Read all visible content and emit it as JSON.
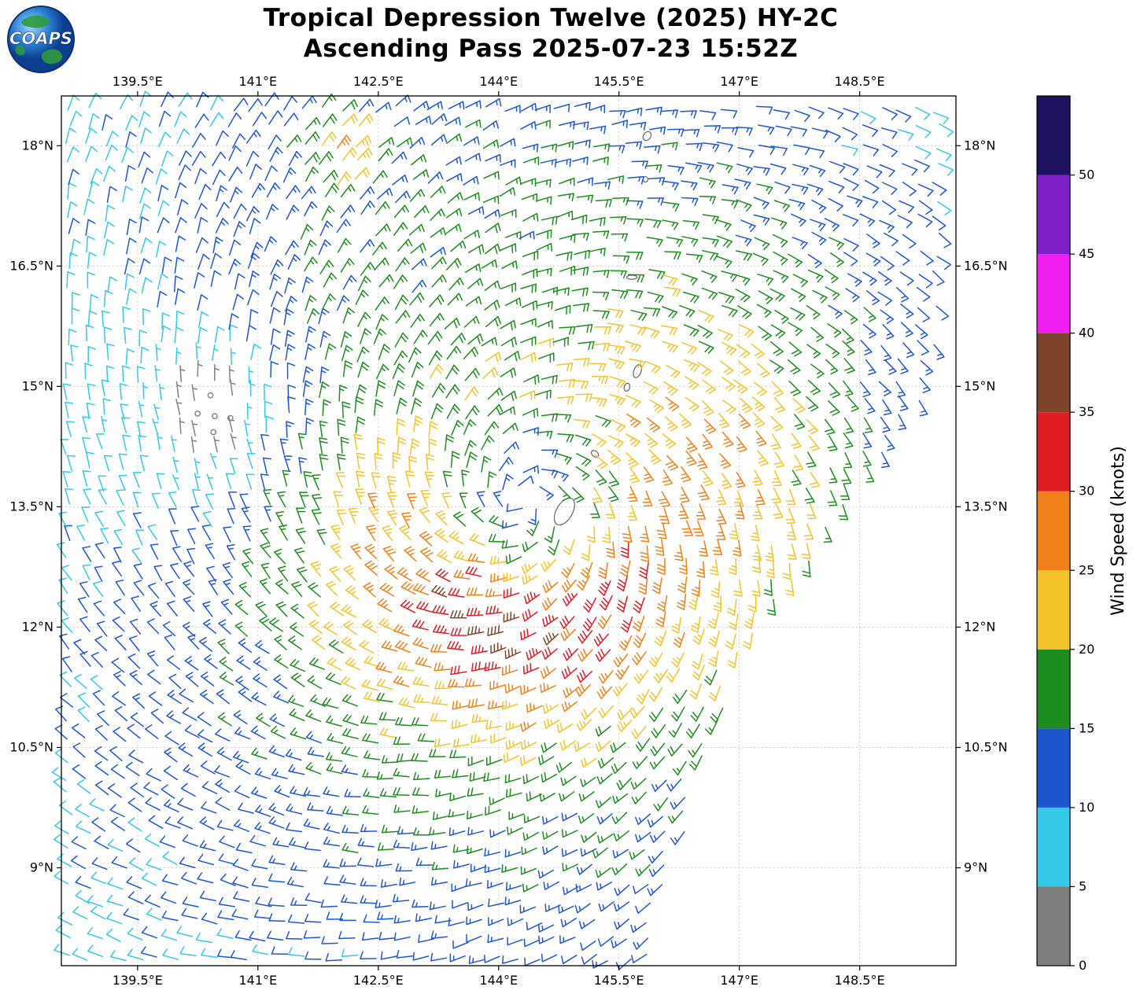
{
  "header": {
    "logo_text": "COAPS",
    "title_line1": "Tropical Depression Twelve (2025) HY-2C",
    "title_line2": "Ascending Pass 2025-07-23 15:52Z"
  },
  "chart_data": {
    "type": "wind_barb_map",
    "title": "Tropical Depression Twelve (2025) HY-2C",
    "subtitle": "Ascending Pass 2025-07-23 15:52Z",
    "x_axis": {
      "range": [
        138.55,
        149.7
      ],
      "ticks": [
        139.5,
        141,
        142.5,
        144,
        145.5,
        147,
        148.5
      ],
      "tick_labels": [
        "139.5°E",
        "141°E",
        "142.5°E",
        "144°E",
        "145.5°E",
        "147°E",
        "148.5°E"
      ]
    },
    "y_axis": {
      "range": [
        7.78,
        18.62
      ],
      "ticks": [
        9,
        10.5,
        12,
        13.5,
        15,
        16.5,
        18
      ],
      "tick_labels": [
        "9°N",
        "10.5°N",
        "12°N",
        "13.5°N",
        "15°N",
        "16.5°N",
        "18°N"
      ]
    },
    "colorbar": {
      "label": "Wind Speed (knots)",
      "tick_values": [
        0,
        5,
        10,
        15,
        20,
        25,
        30,
        35,
        40,
        45,
        50
      ],
      "tick_labels": [
        "0",
        "5",
        "10",
        "15",
        "20",
        "25",
        "30",
        "35",
        "40",
        "45",
        "50"
      ],
      "scale_max": 55,
      "segments": [
        {
          "from": 0,
          "to": 5,
          "color": "#7f7f7f"
        },
        {
          "from": 5,
          "to": 10,
          "color": "#35c8e8"
        },
        {
          "from": 10,
          "to": 15,
          "color": "#1e56d0"
        },
        {
          "from": 15,
          "to": 20,
          "color": "#1e8c1e"
        },
        {
          "from": 20,
          "to": 25,
          "color": "#f3c32c"
        },
        {
          "from": 25,
          "to": 30,
          "color": "#f08019"
        },
        {
          "from": 30,
          "to": 35,
          "color": "#df1c24"
        },
        {
          "from": 35,
          "to": 40,
          "color": "#7d4429"
        },
        {
          "from": 40,
          "to": 45,
          "color": "#f01ef0"
        },
        {
          "from": 45,
          "to": 50,
          "color": "#7e22c8"
        },
        {
          "from": 50,
          "to": 55,
          "color": "#1c1260"
        }
      ]
    },
    "wind_field": {
      "storm_center": [
        144.3,
        13.55
      ],
      "rotation": "cyclonic_ccw",
      "inflow_deg": 22,
      "grid_spacing_deg": 0.225,
      "radial_profile": {
        "r": [
          0,
          0.5,
          1,
          1.5,
          2,
          2.5,
          3,
          4,
          5,
          6,
          7,
          10
        ],
        "knots": [
          10,
          14,
          18,
          21.5,
          21,
          19.5,
          18.5,
          15.5,
          13.5,
          11,
          9.5,
          8
        ]
      },
      "azimuthal_boosts": [
        {
          "name": "south-max-wind-band",
          "amp": 0.62,
          "theta_deg": -95,
          "theta_width": 80,
          "r_deg": 1.5,
          "r_width": 1.3
        },
        {
          "name": "east-yellow-band",
          "amp": 0.25,
          "theta_deg": 15,
          "theta_width": 50,
          "r_deg": 2.8,
          "r_width": 1.6
        },
        {
          "name": "north-weak-sector",
          "amp": -0.15,
          "theta_deg": 115,
          "theta_width": 60,
          "r_deg": 2.2,
          "r_width": 1.5
        }
      ],
      "suppress_patches": [
        {
          "name": "west-light-wind",
          "amp": 0.35,
          "lon": 139.5,
          "lat": 14.3,
          "wlon": 1.8,
          "wlat": 2.5
        },
        {
          "name": "calm-gray-patch",
          "amp": 0.88,
          "lon": 140.45,
          "lat": 14.6,
          "wlon": 0.75,
          "wlat": 0.95
        }
      ],
      "top_patch": {
        "name": "north-yellow-streak",
        "peak": 24,
        "lon": 142.0,
        "lat": 17.9,
        "wlon": 0.9,
        "wlat": 0.95
      },
      "speed_jitter_frac": 0.22,
      "dir_jitter_deg": 14,
      "dropout_frac": 0.02,
      "calm_threshold_knots": 2.5
    },
    "map_features": {
      "swath_right_edge": [
        [
          7.7,
          145.85
        ],
        [
          10.5,
          146.6
        ],
        [
          12.0,
          147.3
        ],
        [
          13.5,
          148.45
        ],
        [
          15.0,
          149.4
        ],
        [
          18.7,
          149.62
        ]
      ],
      "islands": [
        {
          "name": "guam",
          "lon": 144.82,
          "lat": 13.44,
          "rx": 0.1,
          "ry": 0.185,
          "rot": 30
        },
        {
          "name": "rota",
          "lon": 145.2,
          "lat": 14.16,
          "rx": 0.05,
          "ry": 0.035,
          "rot": 40
        },
        {
          "name": "tinian",
          "lon": 145.6,
          "lat": 14.99,
          "rx": 0.035,
          "ry": 0.05,
          "rot": 15
        },
        {
          "name": "saipan",
          "lon": 145.73,
          "lat": 15.19,
          "rx": 0.045,
          "ry": 0.085,
          "rot": 20
        },
        {
          "name": "anatahan",
          "lon": 145.66,
          "lat": 16.36,
          "rx": 0.065,
          "ry": 0.025,
          "rot": 0
        },
        {
          "name": "alamagan",
          "lon": 145.83,
          "lat": 17.58,
          "rx": 0.03,
          "ry": 0.035,
          "rot": 0
        },
        {
          "name": "pagan",
          "lon": 145.85,
          "lat": 18.12,
          "rx": 0.045,
          "ry": 0.06,
          "rot": 35
        }
      ],
      "island_masks": [
        {
          "lon": 144.84,
          "lat": 13.45,
          "r": 0.2
        },
        {
          "lon": 145.68,
          "lat": 15.1,
          "r": 0.12
        }
      ]
    },
    "style": {
      "grid_color": "#c9c9c9",
      "frame_color": "#000000",
      "text_color": "#000000",
      "island_outline_color": "#666666",
      "logo_blue": "#1565c0",
      "logo_green": "#2e9b3d"
    }
  }
}
